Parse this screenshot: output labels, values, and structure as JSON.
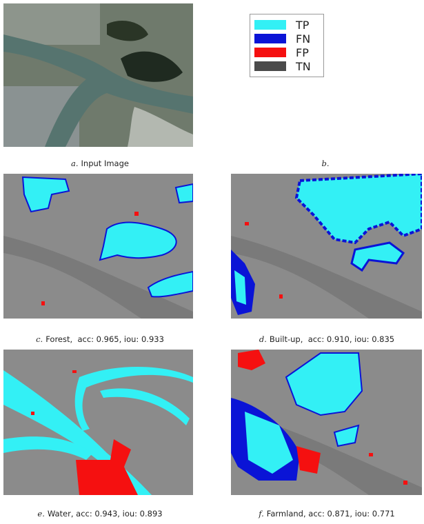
{
  "legend": [
    {
      "label": "TP",
      "color": "#33f0f5"
    },
    {
      "label": "FN",
      "color": "#0a14d6"
    },
    {
      "label": "FP",
      "color": "#f51010"
    },
    {
      "label": "TN",
      "color": "#4a4a4a"
    }
  ],
  "panels": [
    {
      "letter": "a.",
      "text": "Input Image"
    },
    {
      "letter": "b.",
      "text": null
    },
    {
      "letter": "c.",
      "text": "Forest,  acc: 0.965, iou: 0.933"
    },
    {
      "letter": "d.",
      "text": "Built-up,  acc: 0.910, iou: 0.835"
    },
    {
      "letter": "e.",
      "text": "Water, acc: 0.943, iou: 0.893"
    },
    {
      "letter": "f.",
      "text": "Farmland, acc: 0.871, iou: 0.771"
    }
  ]
}
